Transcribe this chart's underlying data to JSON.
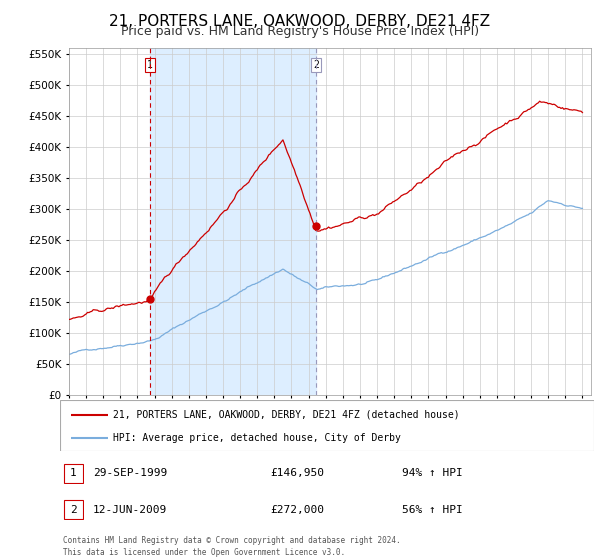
{
  "title": "21, PORTERS LANE, OAKWOOD, DERBY, DE21 4FZ",
  "subtitle": "Price paid vs. HM Land Registry's House Price Index (HPI)",
  "ylim": [
    0,
    560000
  ],
  "yticks": [
    0,
    50000,
    100000,
    150000,
    200000,
    250000,
    300000,
    350000,
    400000,
    450000,
    500000,
    550000
  ],
  "xlim_start": 1995.0,
  "xlim_end": 2025.5,
  "sale1_date": 1999.747,
  "sale1_price": 146950,
  "sale1_label": "29-SEP-1999",
  "sale1_pct": "94%",
  "sale2_date": 2009.44,
  "sale2_price": 272000,
  "sale2_label": "12-JUN-2009",
  "sale2_pct": "56%",
  "red_color": "#cc0000",
  "blue_color": "#7aaddd",
  "shade_color": "#ddeeff",
  "grid_color": "#cccccc",
  "background_color": "#ffffff",
  "legend_label_red": "21, PORTERS LANE, OAKWOOD, DERBY, DE21 4FZ (detached house)",
  "legend_label_blue": "HPI: Average price, detached house, City of Derby",
  "footnote1": "Contains HM Land Registry data © Crown copyright and database right 2024.",
  "footnote2": "This data is licensed under the Open Government Licence v3.0.",
  "title_fontsize": 11,
  "subtitle_fontsize": 9
}
